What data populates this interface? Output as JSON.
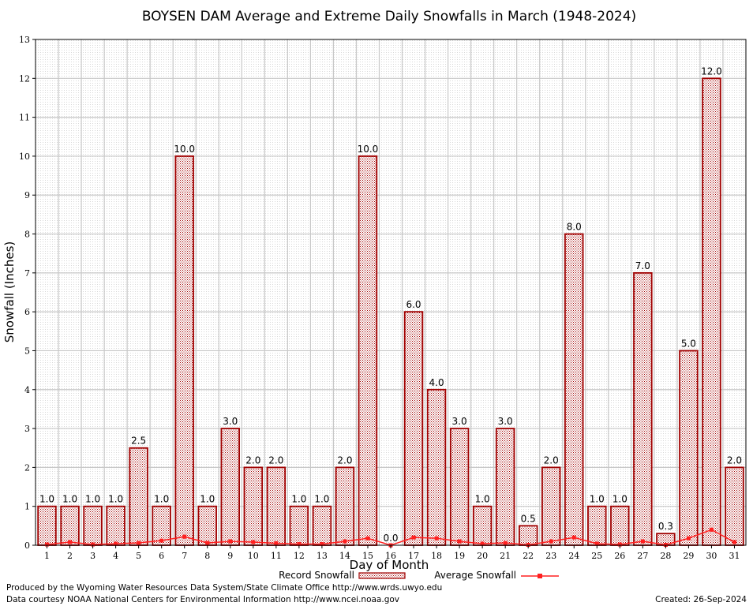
{
  "chart_data": {
    "type": "bar",
    "title": "BOYSEN DAM Average and Extreme Daily Snowfalls in March (1948-2024)",
    "xlabel": "Day of Month",
    "ylabel": "Snowfall (Inches)",
    "ylim": [
      0,
      13
    ],
    "yticks": [
      "0",
      "1",
      "2",
      "3",
      "4",
      "5",
      "6",
      "7",
      "8",
      "9",
      "10",
      "11",
      "12",
      "13"
    ],
    "categories": [
      "1",
      "2",
      "3",
      "4",
      "5",
      "6",
      "7",
      "8",
      "9",
      "10",
      "11",
      "12",
      "13",
      "14",
      "15",
      "16",
      "17",
      "18",
      "19",
      "20",
      "21",
      "22",
      "23",
      "24",
      "25",
      "26",
      "27",
      "28",
      "29",
      "30",
      "31"
    ],
    "grid": true,
    "legend_position": "bottom-center",
    "series": [
      {
        "name": "Record Snowfall",
        "kind": "bar",
        "color": "#a00000",
        "values": [
          1.0,
          1.0,
          1.0,
          1.0,
          2.5,
          1.0,
          10.0,
          1.0,
          3.0,
          2.0,
          2.0,
          1.0,
          1.0,
          2.0,
          10.0,
          0.0,
          6.0,
          4.0,
          3.0,
          1.0,
          3.0,
          0.5,
          2.0,
          8.0,
          1.0,
          1.0,
          7.0,
          0.3,
          5.0,
          12.0,
          2.0
        ],
        "labels": [
          "1.0",
          "1.0",
          "1.0",
          "1.0",
          "2.5",
          "1.0",
          "10.0",
          "1.0",
          "3.0",
          "2.0",
          "2.0",
          "1.0",
          "1.0",
          "2.0",
          "10.0",
          "0.0",
          "6.0",
          "4.0",
          "3.0",
          "1.0",
          "3.0",
          "0.5",
          "2.0",
          "8.0",
          "1.0",
          "1.0",
          "7.0",
          "0.3",
          "5.0",
          "12.0",
          "2.0"
        ]
      },
      {
        "name": "Average Snowfall",
        "kind": "line",
        "color": "#ff2020",
        "values": [
          0.02,
          0.08,
          0.02,
          0.04,
          0.06,
          0.12,
          0.22,
          0.06,
          0.1,
          0.08,
          0.05,
          0.03,
          0.03,
          0.1,
          0.18,
          0.0,
          0.2,
          0.18,
          0.1,
          0.04,
          0.06,
          0.01,
          0.1,
          0.2,
          0.04,
          0.02,
          0.1,
          0.01,
          0.18,
          0.4,
          0.08
        ]
      }
    ]
  },
  "footer": {
    "line1": "Produced by the Wyoming Water Resources Data System/State Climate Office http://www.wrds.uwyo.edu",
    "line2": "Data courtesy NOAA National Centers for Environmental Information http://www.ncei.noaa.gov",
    "created": "Created:  26-Sep-2024"
  }
}
